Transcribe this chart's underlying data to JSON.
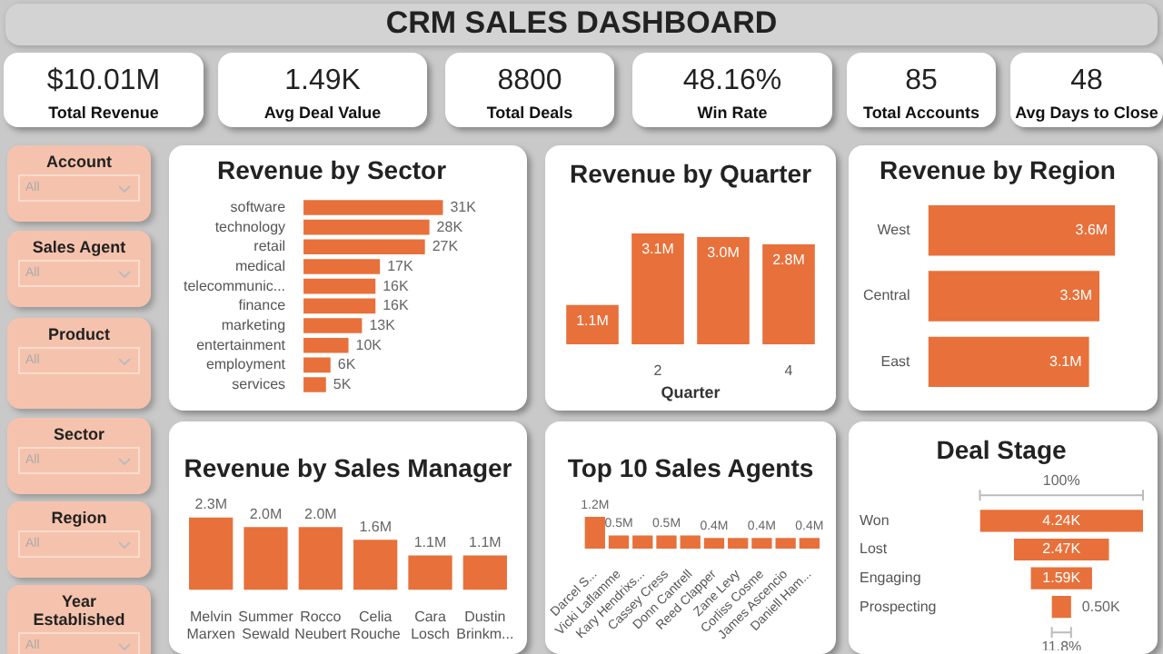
{
  "chart_data": [
    {
      "type": "other",
      "title": "CRM SALES DASHBOARD",
      "annotations": [
        "$10.01M",
        "Total Revenue",
        "1.49K",
        "Avg Deal Value",
        "8800",
        "Total Deals",
        "48.16%",
        "Win Rate",
        "85",
        "Total Accounts",
        "48",
        "Avg Days to Close"
      ]
    },
    {
      "type": "other",
      "annotations": [
        "Account",
        "All",
        "Sales Agent",
        "All",
        "Product",
        "All",
        "Sector",
        "All",
        "Region",
        "All",
        "Year Established",
        "All"
      ]
    },
    {
      "type": "bar",
      "title": "Revenue by Sector",
      "orientation": "horizontal",
      "tick_labels": "y",
      "color": "#e8703a",
      "categories": [
        "software",
        "technology",
        "retail",
        "medical",
        "telecommunic...",
        "finance",
        "marketing",
        "entertainment",
        "employment",
        "services"
      ],
      "values": [
        31,
        28,
        27,
        17,
        16,
        16,
        13,
        10,
        6,
        5
      ],
      "value_labels": [
        "31K",
        "28K",
        "27K",
        "17K",
        "16K",
        "16K",
        "13K",
        "10K",
        "6K",
        "5K"
      ]
    },
    {
      "type": "bar",
      "title": "Revenue by Quarter",
      "xlabel": "Quarter",
      "tick_labels": "x",
      "color": "#e8703a",
      "categories": [
        null,
        "2",
        null,
        "4"
      ],
      "values": [
        1.1,
        3.1,
        3.0,
        2.8
      ],
      "value_labels": [
        "1.1M",
        "3.1M",
        "3.0M",
        "2.8M"
      ]
    },
    {
      "type": "bar",
      "title": "Revenue by Region",
      "orientation": "horizontal",
      "tick_labels": "y",
      "color": "#e8703a",
      "categories": [
        "West",
        "Central",
        "East"
      ],
      "values": [
        3.6,
        3.3,
        3.1
      ],
      "value_labels": [
        "3.6M",
        "3.3M",
        "3.1M"
      ]
    },
    {
      "type": "bar",
      "title": "Revenue by Sales Manager",
      "tick_labels": "x",
      "color": "#e8703a",
      "categories": [
        "Melvin Marxen",
        "Summer Sewald",
        "Rocco Neubert",
        "Celia Rouche",
        "Cara Losch",
        "Dustin Brinkm..."
      ],
      "values": [
        2.3,
        2.0,
        2.0,
        1.6,
        1.1,
        1.1
      ],
      "value_labels": [
        "2.3M",
        "2.0M",
        "2.0M",
        "1.6M",
        "1.1M",
        "1.1M"
      ]
    },
    {
      "type": "bar",
      "title": "Top 10 Sales Agents",
      "tick_labels": "x",
      "color": "#e8703a",
      "categories": [
        "Darcel S...",
        "Vicki Laflamme",
        "Kary Hendrixs...",
        "Cassey Cress",
        "Donn Cantrell",
        "Reed Clapper",
        "Zane Levy",
        "Corliss Cosme",
        "James Ascencio",
        "Daniell Ham..."
      ],
      "values": [
        1.2,
        0.5,
        0.5,
        0.5,
        0.5,
        0.4,
        0.4,
        0.4,
        0.4,
        0.4
      ],
      "value_labels": [
        "1.2M",
        "0.5M",
        null,
        "0.5M",
        null,
        "0.4M",
        null,
        "0.4M",
        null,
        "0.4M"
      ]
    },
    {
      "type": "other",
      "title": "Deal Stage",
      "categories": [
        "Won",
        "Lost",
        "Engaging",
        "Prospecting"
      ],
      "values": [
        4.24,
        2.47,
        1.59,
        0.5
      ],
      "value_labels": [
        "4.24K",
        "2.47K",
        "1.59K",
        "0.50K"
      ],
      "annotations": [
        "100%",
        "11.8%"
      ]
    }
  ]
}
